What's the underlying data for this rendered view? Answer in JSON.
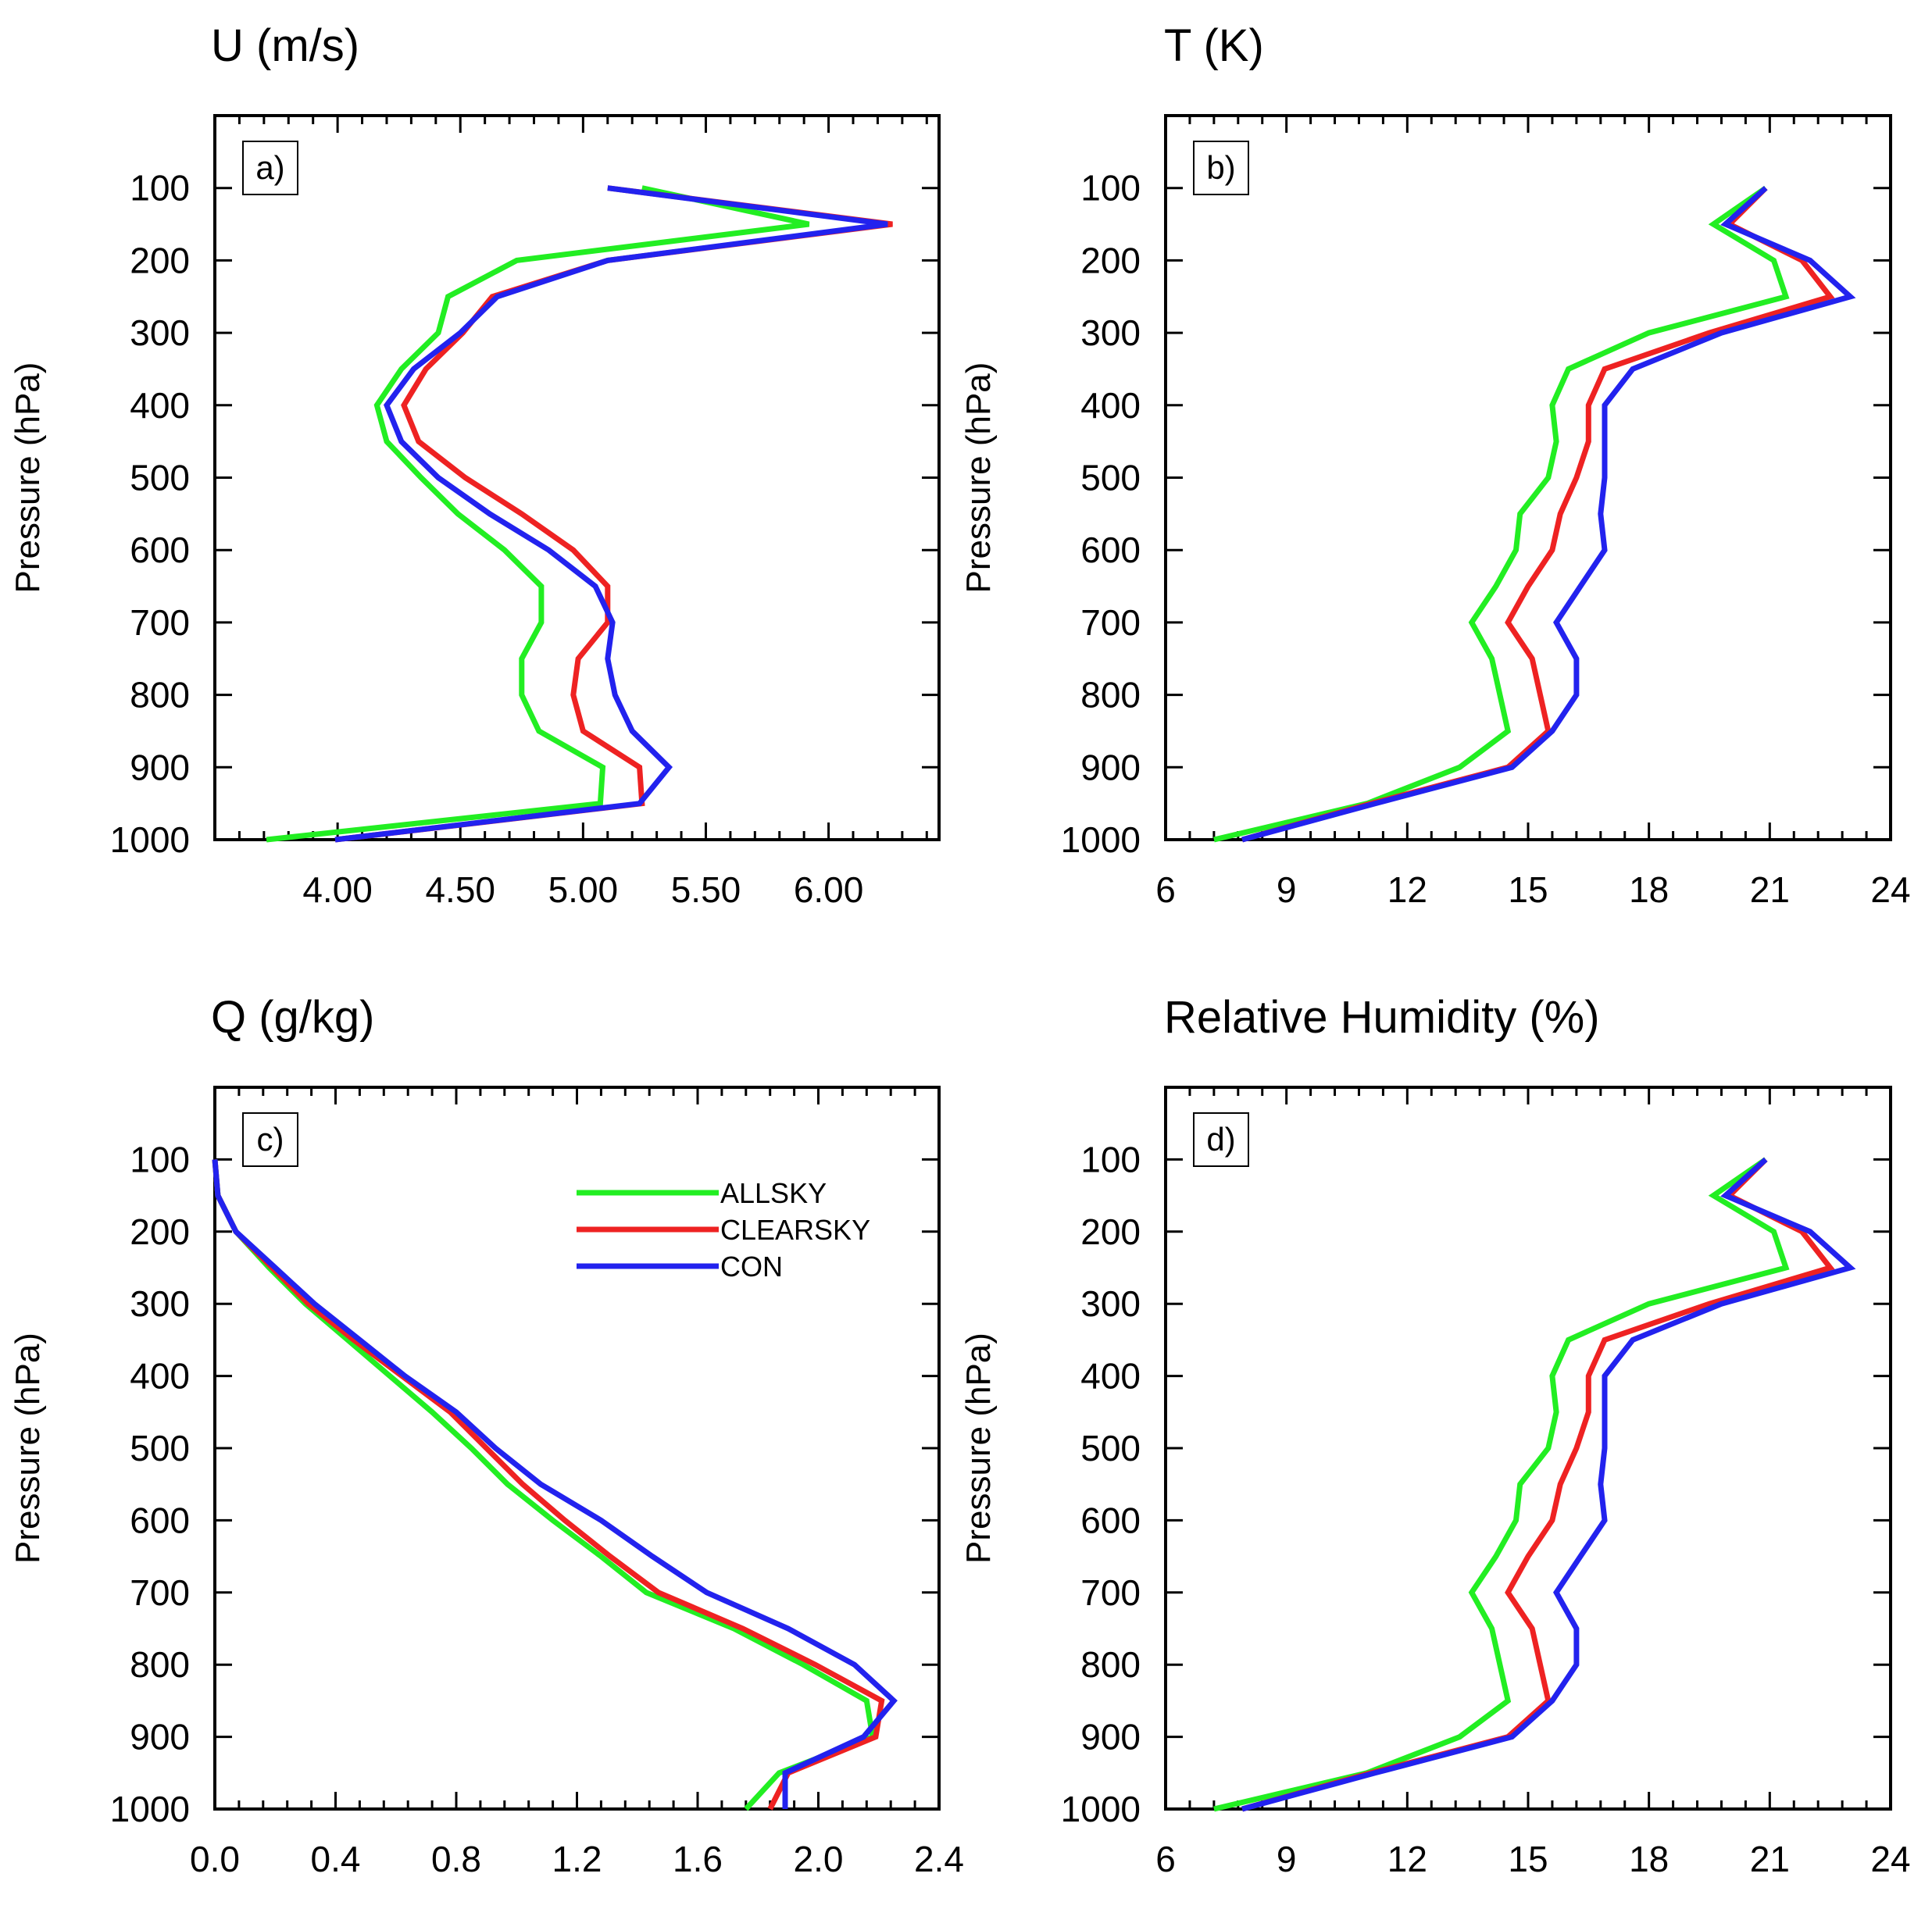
{
  "colors": {
    "ALLSKY": "#22ee22",
    "CLEARSKY": "#ee2222",
    "CON": "#2222ee",
    "axis": "#000000"
  },
  "legend": [
    {
      "name": "ALLSKY",
      "color": "#22ee22"
    },
    {
      "name": "CLEARSKY",
      "color": "#ee2222"
    },
    {
      "name": "CON",
      "color": "#2222ee"
    }
  ],
  "chart_data": [
    {
      "type": "line",
      "panel": "a)",
      "title": "U (m/s)",
      "ylabel": "Pressure (hPa)",
      "xlabel": "",
      "xlim": [
        3.5,
        6.45
      ],
      "ylim": [
        0,
        1000
      ],
      "y_reversed": true,
      "xticks": [
        "4.00",
        "4.50",
        "5.00",
        "5.50",
        "6.00"
      ],
      "xtick_values": [
        4.0,
        4.5,
        5.0,
        5.5,
        6.0
      ],
      "yticks": [
        "100",
        "200",
        "300",
        "400",
        "500",
        "600",
        "700",
        "800",
        "900",
        "1000"
      ],
      "pressure": [
        100,
        150,
        200,
        250,
        300,
        350,
        400,
        450,
        500,
        550,
        600,
        650,
        700,
        750,
        800,
        850,
        900,
        950,
        1000
      ],
      "series": [
        {
          "name": "ALLSKY",
          "values": [
            5.24,
            5.92,
            4.73,
            4.45,
            4.41,
            4.26,
            4.16,
            4.2,
            4.34,
            4.49,
            4.68,
            4.83,
            4.83,
            4.75,
            4.75,
            4.82,
            5.08,
            5.07,
            3.71
          ]
        },
        {
          "name": "CLEARSKY",
          "values": [
            5.1,
            6.26,
            5.1,
            4.63,
            4.51,
            4.36,
            4.27,
            4.33,
            4.52,
            4.75,
            4.96,
            5.1,
            5.1,
            4.98,
            4.96,
            5.0,
            5.23,
            5.24,
            3.99
          ]
        },
        {
          "name": "CON",
          "values": [
            5.1,
            6.24,
            5.1,
            4.65,
            4.5,
            4.31,
            4.2,
            4.26,
            4.41,
            4.62,
            4.86,
            5.05,
            5.12,
            5.1,
            5.13,
            5.2,
            5.35,
            5.23,
            3.99
          ]
        }
      ]
    },
    {
      "type": "line",
      "panel": "b)",
      "title": "T (K)",
      "ylabel": "Pressure (hPa)",
      "xlabel": "",
      "xlim": [
        6,
        24
      ],
      "ylim": [
        0,
        1000
      ],
      "y_reversed": true,
      "xticks": [
        "6",
        "9",
        "12",
        "15",
        "18",
        "21",
        "24"
      ],
      "xtick_values": [
        6,
        9,
        12,
        15,
        18,
        21,
        24
      ],
      "yticks": [
        "100",
        "200",
        "300",
        "400",
        "500",
        "600",
        "700",
        "800",
        "900",
        "1000"
      ],
      "pressure": [
        100,
        150,
        200,
        250,
        300,
        350,
        400,
        450,
        500,
        550,
        600,
        650,
        700,
        750,
        800,
        850,
        900,
        950,
        1000
      ],
      "series": [
        {
          "name": "ALLSKY",
          "values": [
            20.9,
            19.6,
            21.1,
            21.4,
            18.0,
            16.0,
            15.6,
            15.7,
            15.5,
            14.8,
            14.7,
            14.2,
            13.6,
            14.1,
            14.3,
            14.5,
            13.3,
            11.0,
            7.2
          ]
        },
        {
          "name": "CLEARSKY",
          "values": [
            20.9,
            20.0,
            21.8,
            22.5,
            19.5,
            16.9,
            16.5,
            16.5,
            16.2,
            15.8,
            15.6,
            15.0,
            14.5,
            15.1,
            15.3,
            15.5,
            14.5,
            11.1,
            7.9
          ]
        },
        {
          "name": "CON",
          "values": [
            20.9,
            19.9,
            22.0,
            23.0,
            19.8,
            17.6,
            16.9,
            16.9,
            16.9,
            16.8,
            16.9,
            16.3,
            15.7,
            16.2,
            16.2,
            15.6,
            14.6,
            11.2,
            7.9
          ]
        }
      ]
    },
    {
      "type": "line",
      "panel": "c)",
      "title": "Q (g/kg)",
      "ylabel": "Pressure (hPa)",
      "xlabel": "",
      "xlim": [
        0,
        2.4
      ],
      "ylim": [
        0,
        1000
      ],
      "y_reversed": true,
      "xticks": [
        "0.0",
        "0.4",
        "0.8",
        "1.2",
        "1.6",
        "2.0",
        "2.4"
      ],
      "xtick_values": [
        0,
        0.4,
        0.8,
        1.2,
        1.6,
        2.0,
        2.4
      ],
      "yticks": [
        "100",
        "200",
        "300",
        "400",
        "500",
        "600",
        "700",
        "800",
        "900",
        "1000"
      ],
      "pressure": [
        100,
        150,
        200,
        250,
        300,
        350,
        400,
        450,
        500,
        550,
        600,
        650,
        700,
        750,
        800,
        850,
        900,
        950,
        1000
      ],
      "series": [
        {
          "name": "ALLSKY",
          "values": [
            0.0,
            0.01,
            0.07,
            0.18,
            0.3,
            0.44,
            0.58,
            0.72,
            0.85,
            0.97,
            1.12,
            1.28,
            1.43,
            1.72,
            1.95,
            2.16,
            2.18,
            1.87,
            1.76
          ]
        },
        {
          "name": "CLEARSKY",
          "values": [
            0.0,
            0.01,
            0.07,
            0.19,
            0.31,
            0.46,
            0.62,
            0.78,
            0.9,
            1.02,
            1.16,
            1.31,
            1.47,
            1.75,
            1.99,
            2.21,
            2.19,
            1.9,
            1.84
          ]
        },
        {
          "name": "CON",
          "values": [
            0.0,
            0.01,
            0.07,
            0.2,
            0.33,
            0.48,
            0.63,
            0.8,
            0.93,
            1.08,
            1.28,
            1.45,
            1.63,
            1.9,
            2.12,
            2.25,
            2.15,
            1.89,
            1.89
          ]
        }
      ]
    },
    {
      "type": "line",
      "panel": "d)",
      "title": "Relative Humidity (%)",
      "ylabel": "Pressure (hPa)",
      "xlabel": "",
      "xlim": [
        6,
        24
      ],
      "ylim": [
        0,
        1000
      ],
      "y_reversed": true,
      "xticks": [
        "6",
        "9",
        "12",
        "15",
        "18",
        "21",
        "24"
      ],
      "xtick_values": [
        6,
        9,
        12,
        15,
        18,
        21,
        24
      ],
      "yticks": [
        "100",
        "200",
        "300",
        "400",
        "500",
        "600",
        "700",
        "800",
        "900",
        "1000"
      ],
      "pressure": [
        100,
        150,
        200,
        250,
        300,
        350,
        400,
        450,
        500,
        550,
        600,
        650,
        700,
        750,
        800,
        850,
        900,
        950,
        1000
      ],
      "legend_position": "top-right",
      "series": [
        {
          "name": "ALLSKY",
          "values": [
            20.9,
            19.6,
            21.1,
            21.4,
            18.0,
            16.0,
            15.6,
            15.7,
            15.5,
            14.8,
            14.7,
            14.2,
            13.6,
            14.1,
            14.3,
            14.5,
            13.3,
            11.0,
            7.2
          ]
        },
        {
          "name": "CLEARSKY",
          "values": [
            20.9,
            20.0,
            21.8,
            22.5,
            19.5,
            16.9,
            16.5,
            16.5,
            16.2,
            15.8,
            15.6,
            15.0,
            14.5,
            15.1,
            15.3,
            15.5,
            14.5,
            11.1,
            7.9
          ]
        },
        {
          "name": "CON",
          "values": [
            20.9,
            19.9,
            22.0,
            23.0,
            19.8,
            17.6,
            16.9,
            16.9,
            16.9,
            16.8,
            16.9,
            16.3,
            15.7,
            16.2,
            16.2,
            15.6,
            14.6,
            11.2,
            7.9
          ]
        }
      ]
    }
  ]
}
